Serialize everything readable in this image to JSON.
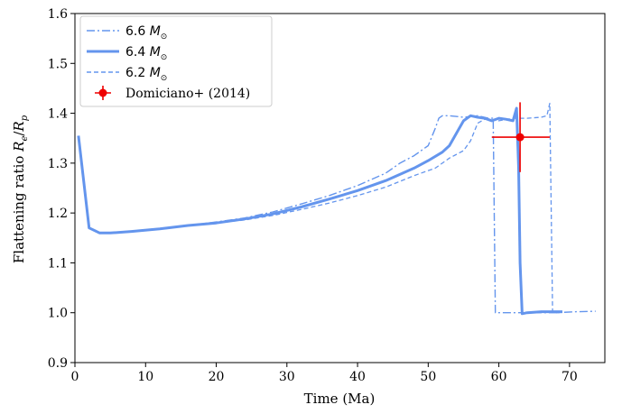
{
  "chart_data": {
    "type": "line",
    "xlabel": "Time (Ma)",
    "ylabel_main": "Flattening ratio ",
    "ylabel_math": "R",
    "ylabel_sub_e": "e",
    "ylabel_slash": "/",
    "ylabel_sub_p": "p",
    "xlim": [
      0,
      75
    ],
    "ylim": [
      0.9,
      1.6
    ],
    "xticks": [
      "0",
      "10",
      "20",
      "30",
      "40",
      "50",
      "60",
      "70"
    ],
    "yticks": [
      "0.9",
      "1.0",
      "1.1",
      "1.2",
      "1.3",
      "1.4",
      "1.5",
      "1.6"
    ],
    "grid": false,
    "legend_position": "top-left",
    "series": [
      {
        "name": "6.6 M_sun",
        "label_num": "6.6",
        "label_sub": "⊙",
        "color": "#6495ED",
        "style": "dashdot",
        "x": [
          0.5,
          2.0,
          3.5,
          5,
          8,
          12,
          16,
          20,
          24,
          28,
          32,
          36,
          40,
          44,
          46,
          48,
          50,
          51,
          51.5,
          52,
          53,
          55,
          57,
          58.5,
          59.2,
          59.5,
          61,
          64,
          68,
          71,
          73.7
        ],
        "y": [
          1.355,
          1.17,
          1.16,
          1.16,
          1.163,
          1.168,
          1.175,
          1.182,
          1.19,
          1.202,
          1.218,
          1.235,
          1.255,
          1.28,
          1.3,
          1.315,
          1.335,
          1.37,
          1.39,
          1.395,
          1.395,
          1.392,
          1.395,
          1.39,
          1.39,
          1.0,
          1.0,
          1.0,
          1.0,
          1.002,
          1.003
        ]
      },
      {
        "name": "6.4 M_sun",
        "label_num": "6.4",
        "label_sub": "⊙",
        "color": "#6495ED",
        "style": "solid",
        "x": [
          0.5,
          2.0,
          3.5,
          5,
          8,
          12,
          16,
          20,
          24,
          28,
          32,
          36,
          40,
          44,
          48,
          50,
          52,
          53,
          54,
          55,
          56,
          57,
          58,
          59,
          60,
          61,
          62,
          62.5,
          62.8,
          63.0,
          63.3,
          64,
          66,
          68,
          69
        ],
        "y": [
          1.355,
          1.17,
          1.16,
          1.16,
          1.163,
          1.168,
          1.175,
          1.18,
          1.188,
          1.198,
          1.212,
          1.228,
          1.245,
          1.265,
          1.29,
          1.305,
          1.322,
          1.335,
          1.36,
          1.385,
          1.395,
          1.392,
          1.39,
          1.385,
          1.39,
          1.388,
          1.385,
          1.41,
          1.29,
          1.1,
          0.998,
          1.0,
          1.002,
          1.002,
          1.002
        ]
      },
      {
        "name": "6.2 M_sun",
        "label_num": "6.2",
        "label_sub": "⊙",
        "color": "#6495ED",
        "style": "dashed",
        "x": [
          0.5,
          2.0,
          3.5,
          5,
          8,
          12,
          16,
          20,
          24,
          28,
          32,
          36,
          40,
          44,
          48,
          51,
          53,
          55,
          56,
          57,
          58,
          60,
          62,
          64,
          66,
          66.8,
          67.2,
          67.6,
          68.1,
          68.6
        ],
        "y": [
          1.355,
          1.17,
          1.16,
          1.16,
          1.163,
          1.168,
          1.175,
          1.18,
          1.186,
          1.195,
          1.207,
          1.22,
          1.235,
          1.252,
          1.275,
          1.29,
          1.31,
          1.325,
          1.345,
          1.38,
          1.388,
          1.385,
          1.39,
          1.39,
          1.392,
          1.395,
          1.42,
          1.002,
          1.0,
          1.0
        ]
      }
    ],
    "observation": {
      "name": "Domiciano+ (2014)",
      "color": "#ee0000",
      "x": 63.0,
      "y": 1.352,
      "xerr": [
        4.0,
        4.2
      ],
      "yerr": [
        0.07,
        0.07
      ]
    }
  }
}
